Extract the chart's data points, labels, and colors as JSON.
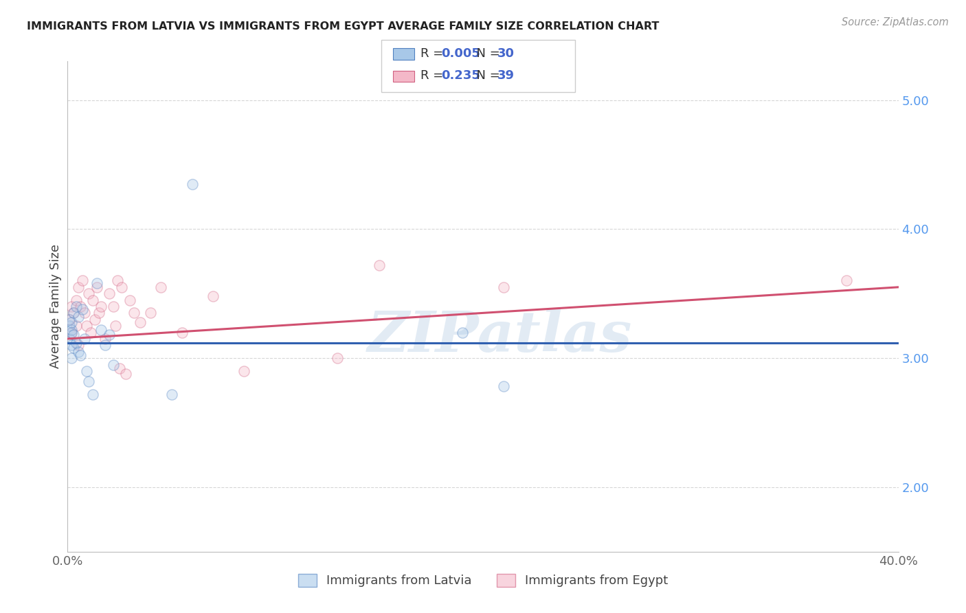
{
  "title": "IMMIGRANTS FROM LATVIA VS IMMIGRANTS FROM EGYPT AVERAGE FAMILY SIZE CORRELATION CHART",
  "source": "Source: ZipAtlas.com",
  "ylabel": "Average Family Size",
  "xlim": [
    0.0,
    0.4
  ],
  "ylim": [
    1.5,
    5.3
  ],
  "yticks_right": [
    2.0,
    3.0,
    4.0,
    5.0
  ],
  "xticks": [
    0.0,
    0.05,
    0.1,
    0.15,
    0.2,
    0.25,
    0.3,
    0.35,
    0.4
  ],
  "xtick_labels": [
    "0.0%",
    "",
    "",
    "",
    "",
    "",
    "",
    "",
    "40.0%"
  ],
  "series1_label": "Immigrants from Latvia",
  "series2_label": "Immigrants from Egypt",
  "series1_color": "#a8c8e8",
  "series2_color": "#f4b8c8",
  "series1_edge": "#5080c0",
  "series2_edge": "#d06080",
  "line1_color": "#3060b0",
  "line2_color": "#d05070",
  "legend_r1": "0.005",
  "legend_n1": "30",
  "legend_r2": "0.235",
  "legend_n2": "39",
  "legend_text_color": "#4466cc",
  "legend_label_color": "#333333",
  "background_color": "#ffffff",
  "grid_color": "#cccccc",
  "marker_size": 120,
  "marker_alpha": 0.35,
  "watermark_text": "ZIPatlas",
  "watermark_color": "#c0d4e8",
  "watermark_alpha": 0.45,
  "latvia_x": [
    0.001,
    0.001,
    0.001,
    0.002,
    0.002,
    0.002,
    0.002,
    0.002,
    0.003,
    0.003,
    0.003,
    0.004,
    0.004,
    0.005,
    0.005,
    0.006,
    0.007,
    0.008,
    0.009,
    0.01,
    0.012,
    0.014,
    0.016,
    0.018,
    0.02,
    0.022,
    0.05,
    0.06,
    0.19,
    0.21
  ],
  "latvia_y": [
    3.25,
    3.3,
    3.15,
    3.2,
    3.1,
    3.0,
    3.22,
    3.28,
    3.18,
    3.35,
    3.08,
    3.4,
    3.12,
    3.32,
    3.05,
    3.02,
    3.38,
    3.15,
    2.9,
    2.82,
    2.72,
    3.58,
    3.22,
    3.1,
    3.18,
    2.95,
    2.72,
    4.35,
    3.2,
    2.78
  ],
  "egypt_x": [
    0.001,
    0.002,
    0.002,
    0.003,
    0.004,
    0.004,
    0.005,
    0.005,
    0.006,
    0.007,
    0.008,
    0.009,
    0.01,
    0.011,
    0.012,
    0.013,
    0.014,
    0.015,
    0.016,
    0.018,
    0.02,
    0.022,
    0.023,
    0.024,
    0.025,
    0.026,
    0.028,
    0.03,
    0.032,
    0.035,
    0.04,
    0.045,
    0.055,
    0.07,
    0.085,
    0.13,
    0.15,
    0.21,
    0.375
  ],
  "egypt_y": [
    3.3,
    3.4,
    3.2,
    3.35,
    3.25,
    3.45,
    3.1,
    3.55,
    3.4,
    3.6,
    3.35,
    3.25,
    3.5,
    3.2,
    3.45,
    3.3,
    3.55,
    3.35,
    3.4,
    3.15,
    3.5,
    3.4,
    3.25,
    3.6,
    2.92,
    3.55,
    2.88,
    3.45,
    3.35,
    3.28,
    3.35,
    3.55,
    3.2,
    3.48,
    2.9,
    3.0,
    3.72,
    3.55,
    3.6
  ],
  "latvia_line_y0": 3.12,
  "latvia_line_y1": 3.12,
  "egypt_line_y0": 3.15,
  "egypt_line_y1": 3.55
}
